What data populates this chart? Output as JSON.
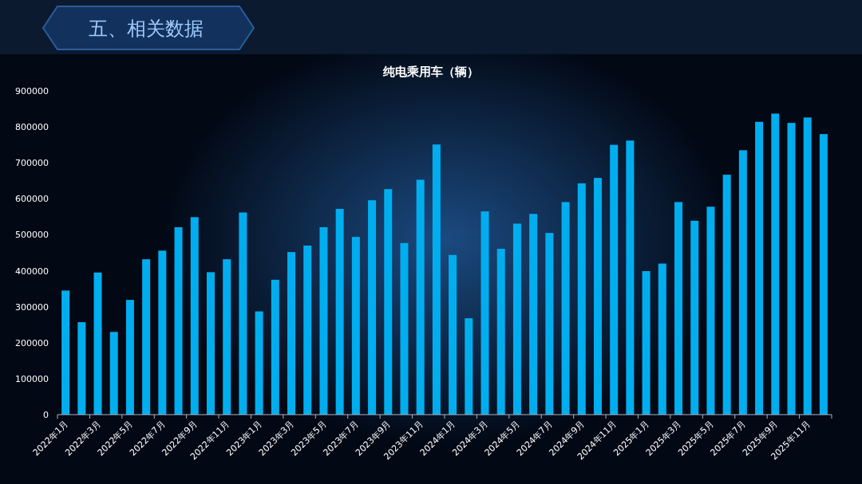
{
  "chart_data": {
    "type": "bar",
    "title": "纯电乘用车（辆）",
    "annotations": [
      "五、相关数据"
    ],
    "categories": [
      "2022年1月",
      null,
      "2022年3月",
      null,
      "2022年5月",
      null,
      "2022年7月",
      null,
      "2022年9月",
      null,
      "2022年11月",
      null,
      "2023年1月",
      null,
      "2023年3月",
      null,
      "2023年5月",
      null,
      "2023年7月",
      null,
      "2023年9月",
      null,
      "2023年11月",
      null,
      "2024年1月",
      null,
      "2024年3月",
      null,
      "2024年5月",
      null,
      "2024年7月",
      null,
      "2024年9月",
      null,
      "2024年11月",
      null,
      "2025年1月",
      null,
      "2025年3月",
      null,
      "2025年5月",
      null,
      "2025年7月",
      null,
      "2025年9月",
      null,
      "2025年11月",
      null
    ],
    "series": [
      {
        "color": "#00aeef",
        "values": [
          345000,
          257000,
          395000,
          230000,
          319000,
          432000,
          456000,
          521000,
          549000,
          396000,
          432000,
          562000,
          287000,
          375000,
          452000,
          470000,
          521000,
          572000,
          494000,
          596000,
          627000,
          477000,
          653000,
          751000,
          444000,
          268000,
          565000,
          461000,
          531000,
          558000,
          505000,
          591000,
          643000,
          658000,
          750000,
          762000,
          399000,
          420000,
          591000,
          539000,
          578000,
          667000,
          735000,
          814000,
          837000,
          811000,
          826000,
          780000
        ]
      }
    ],
    "ylim": [
      0,
      900000
    ],
    "yticks": [
      0,
      100000,
      200000,
      300000,
      400000,
      500000,
      600000,
      700000,
      800000,
      900000
    ],
    "grid": false
  }
}
